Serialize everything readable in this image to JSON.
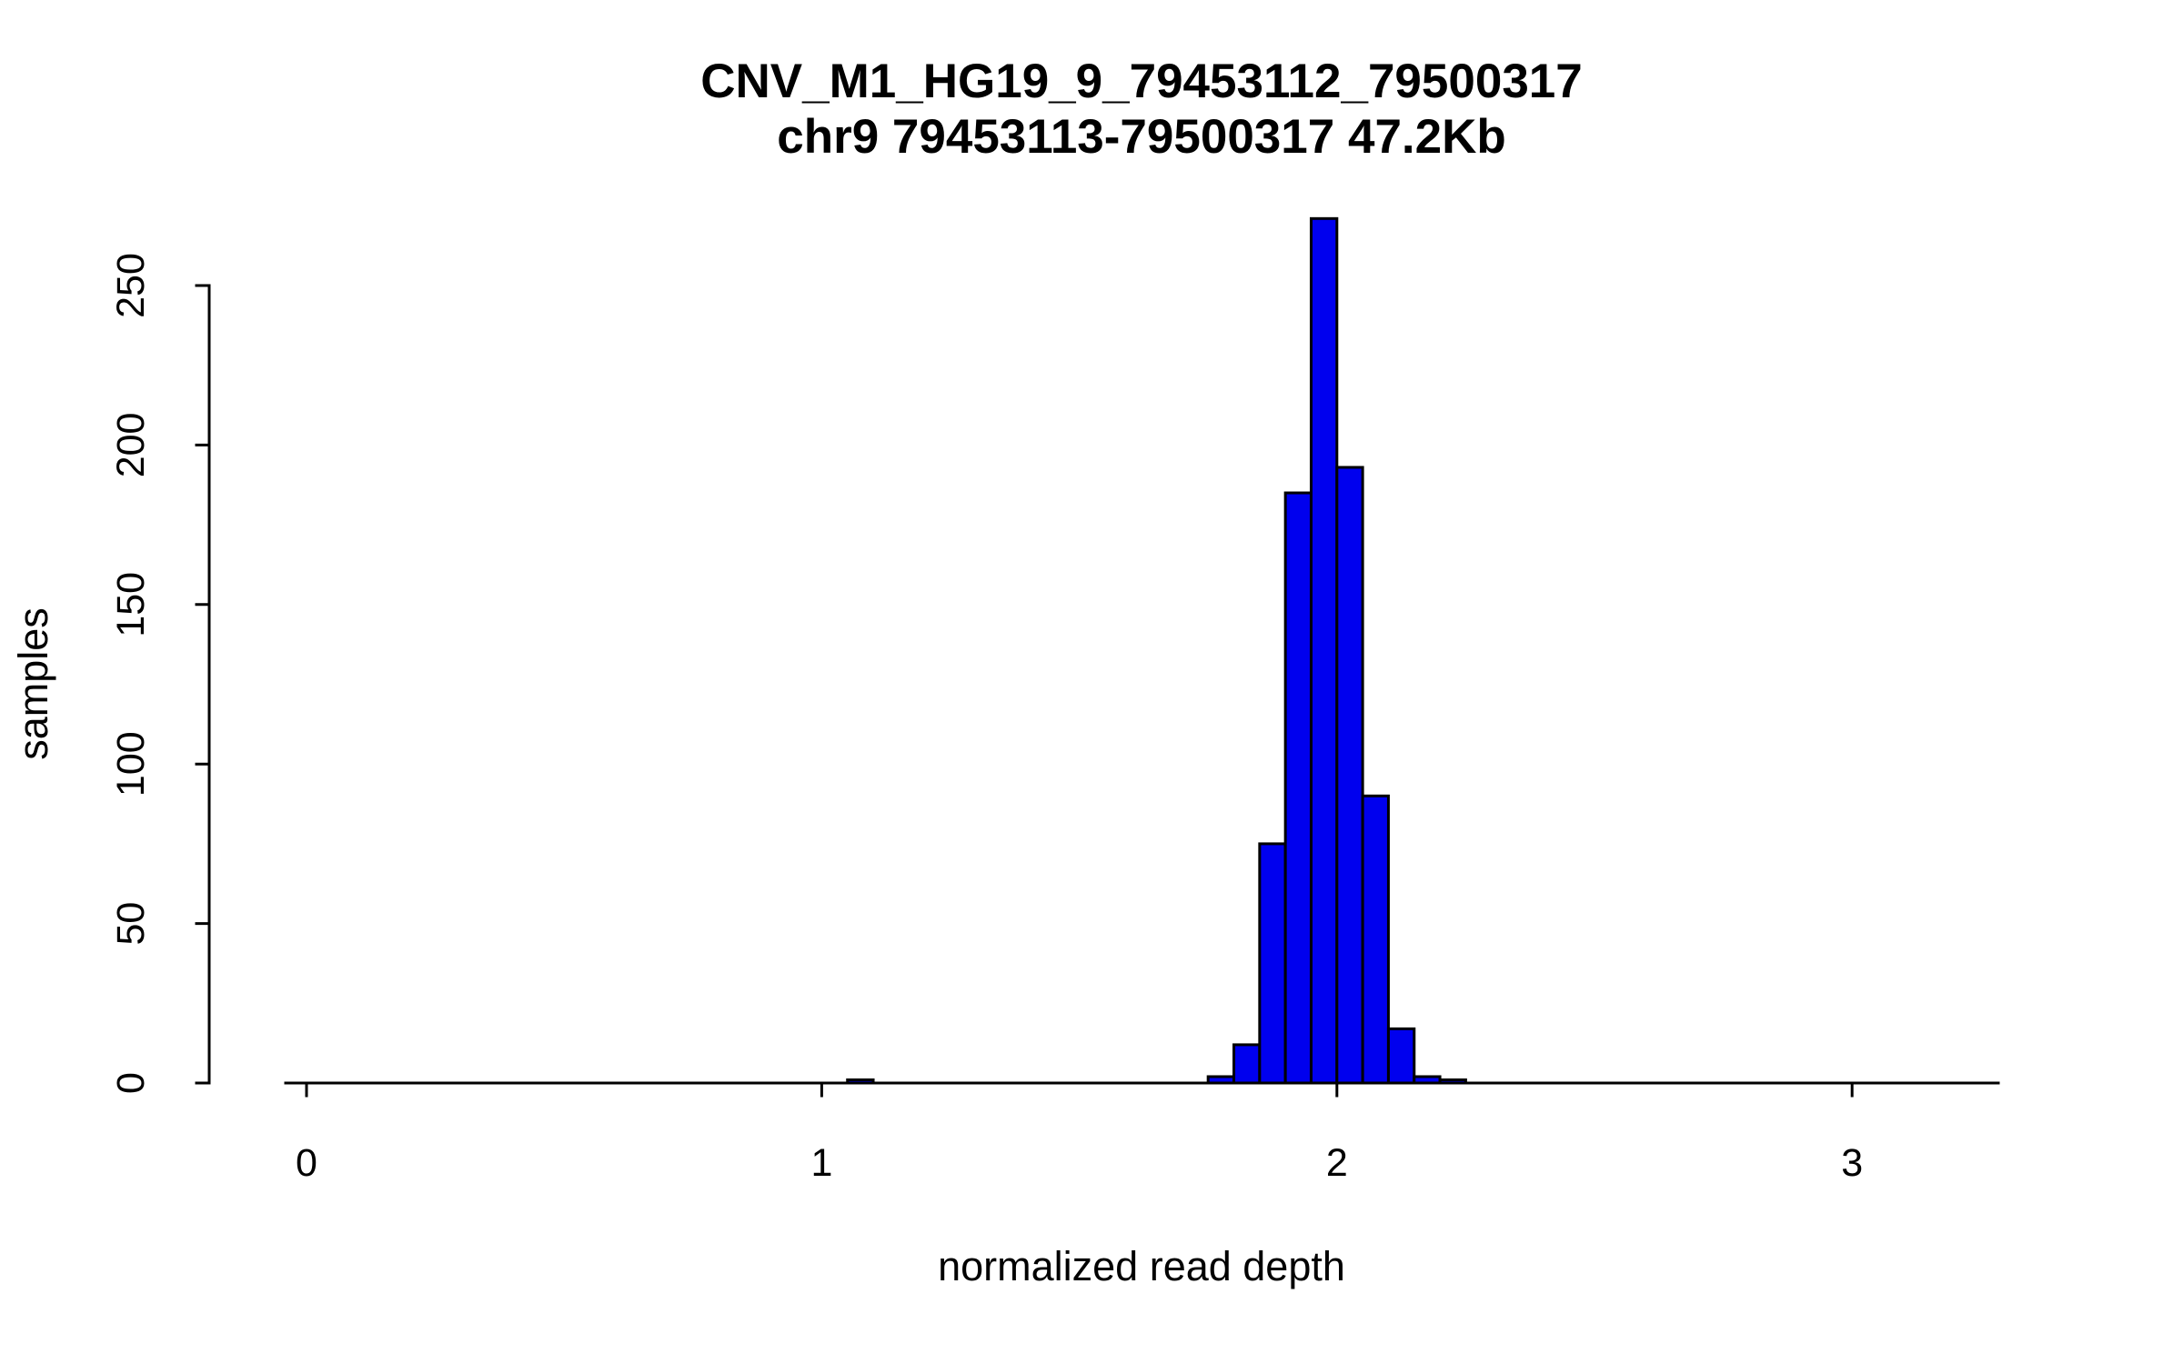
{
  "chart_data": {
    "type": "bar",
    "title": "CNV_M1_HG19_9_79453112_79500317",
    "subtitle": "chr9 79453113-79500317 47.2Kb",
    "xlabel": "normalized read depth",
    "ylabel": "samples",
    "xlim": [
      0,
      3.3
    ],
    "ylim": [
      0,
      272
    ],
    "x_ticks": [
      0,
      1,
      2,
      3
    ],
    "y_ticks": [
      0,
      50,
      100,
      150,
      200,
      250
    ],
    "grid": false,
    "legend": "none",
    "bin_width": 0.05,
    "bins": [
      {
        "x": 1.05,
        "count": 1
      },
      {
        "x": 1.75,
        "count": 2
      },
      {
        "x": 1.8,
        "count": 12
      },
      {
        "x": 1.85,
        "count": 75
      },
      {
        "x": 1.9,
        "count": 185
      },
      {
        "x": 1.95,
        "count": 271
      },
      {
        "x": 2.0,
        "count": 193
      },
      {
        "x": 2.05,
        "count": 90
      },
      {
        "x": 2.1,
        "count": 17
      },
      {
        "x": 2.15,
        "count": 2
      },
      {
        "x": 2.2,
        "count": 1
      }
    ],
    "colors": {
      "bar_fill": "#0000EE",
      "bar_stroke": "#000000",
      "axis": "#000000",
      "background": "#FFFFFF"
    }
  }
}
